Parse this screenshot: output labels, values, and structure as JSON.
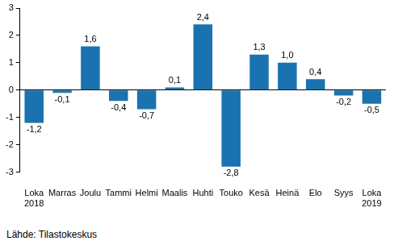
{
  "chart_data": {
    "type": "bar",
    "categories": [
      "Loka 2018",
      "Marras",
      "Joulu",
      "Tammi",
      "Helmi",
      "Maalis",
      "Huhti",
      "Touko",
      "Kesä",
      "Heinä",
      "Elo",
      "Syys",
      "Loka 2019"
    ],
    "values": [
      -1.2,
      -0.1,
      1.6,
      -0.4,
      -0.7,
      0.1,
      2.4,
      -2.8,
      1.3,
      1.0,
      0.4,
      -0.2,
      -0.5
    ],
    "value_labels": [
      "-1,2",
      "-0,1",
      "1,6",
      "-0,4",
      "-0,7",
      "0,1",
      "2,4",
      "-2,8",
      "1,3",
      "1,0",
      "0,4",
      "-0,2",
      "-0,5"
    ],
    "data_labels": true,
    "color": "#1a73b0",
    "ylim": [
      -3,
      3
    ],
    "yticks": [
      -3,
      -2,
      -1,
      0,
      1,
      2,
      3
    ],
    "grid": false,
    "source": "Lähde: Tilastokeskus"
  }
}
